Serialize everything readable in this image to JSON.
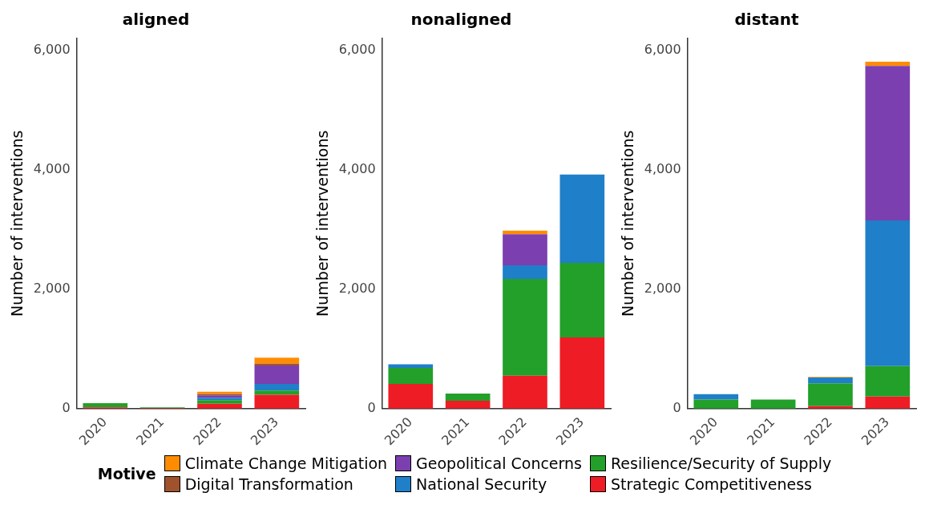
{
  "chart_data": [
    {
      "type": "bar",
      "title": "aligned",
      "ylabel": "Number of interventions",
      "categories": [
        "2020",
        "2021",
        "2022",
        "2023"
      ],
      "stacked": true,
      "ylim": [
        0,
        6200
      ],
      "yticks": [
        {
          "value": 0,
          "label": "0"
        },
        {
          "value": 2000,
          "label": "2,000"
        },
        {
          "value": 4000,
          "label": "4,000"
        },
        {
          "value": 6000,
          "label": "6,000"
        }
      ],
      "grid": false,
      "legend": "bottom",
      "legend_title": "Motive",
      "series": [
        {
          "name": "Strategic Competitiveness",
          "color": "#ee1c25",
          "values": [
            20,
            10,
            80,
            230
          ]
        },
        {
          "name": "Resilience/Security of Supply",
          "color": "#22a02a",
          "values": [
            70,
            10,
            60,
            70
          ]
        },
        {
          "name": "National Security",
          "color": "#1f7fc8",
          "values": [
            0,
            0,
            40,
            110
          ]
        },
        {
          "name": "Geopolitical Concerns",
          "color": "#7b3fb0",
          "values": [
            0,
            0,
            40,
            310
          ]
        },
        {
          "name": "Digital Transformation",
          "color": "#a0522d",
          "values": [
            0,
            0,
            20,
            30
          ]
        },
        {
          "name": "Climate Change Mitigation",
          "color": "#ff8c00",
          "values": [
            0,
            0,
            40,
            100
          ]
        }
      ]
    },
    {
      "type": "bar",
      "title": "nonaligned",
      "ylabel": "Number of interventions",
      "categories": [
        "2020",
        "2021",
        "2022",
        "2023"
      ],
      "stacked": true,
      "ylim": [
        0,
        6200
      ],
      "yticks": [
        {
          "value": 0,
          "label": "0"
        },
        {
          "value": 2000,
          "label": "2,000"
        },
        {
          "value": 4000,
          "label": "4,000"
        },
        {
          "value": 6000,
          "label": "6,000"
        }
      ],
      "grid": false,
      "series": [
        {
          "color": "#ee1c25",
          "values": [
            410,
            130,
            550,
            1190
          ]
        },
        {
          "color": "#22a02a",
          "values": [
            270,
            120,
            1620,
            1250
          ]
        },
        {
          "color": "#1f7fc8",
          "values": [
            60,
            0,
            230,
            1480
          ]
        },
        {
          "color": "#7b3fb0",
          "values": [
            0,
            0,
            520,
            0
          ]
        },
        {
          "color": "#a0522d",
          "values": [
            0,
            0,
            0,
            0
          ]
        },
        {
          "color": "#ff8c00",
          "values": [
            0,
            0,
            60,
            0
          ]
        }
      ]
    },
    {
      "type": "bar",
      "title": "distant",
      "ylabel": "Number of interventions",
      "categories": [
        "2020",
        "2021",
        "2022",
        "2023"
      ],
      "stacked": true,
      "ylim": [
        0,
        6200
      ],
      "yticks": [
        {
          "value": 0,
          "label": "0"
        },
        {
          "value": 2000,
          "label": "2,000"
        },
        {
          "value": 4000,
          "label": "4,000"
        },
        {
          "value": 6000,
          "label": "6,000"
        }
      ],
      "grid": false,
      "series": [
        {
          "color": "#ee1c25",
          "values": [
            0,
            0,
            40,
            200
          ]
        },
        {
          "color": "#22a02a",
          "values": [
            150,
            150,
            380,
            510
          ]
        },
        {
          "color": "#1f7fc8",
          "values": [
            90,
            0,
            100,
            2440
          ]
        },
        {
          "color": "#7b3fb0",
          "values": [
            0,
            0,
            0,
            2590
          ]
        },
        {
          "color": "#a0522d",
          "values": [
            0,
            0,
            0,
            0
          ]
        },
        {
          "color": "#ff8c00",
          "values": [
            0,
            0,
            10,
            70
          ]
        }
      ]
    }
  ]
}
